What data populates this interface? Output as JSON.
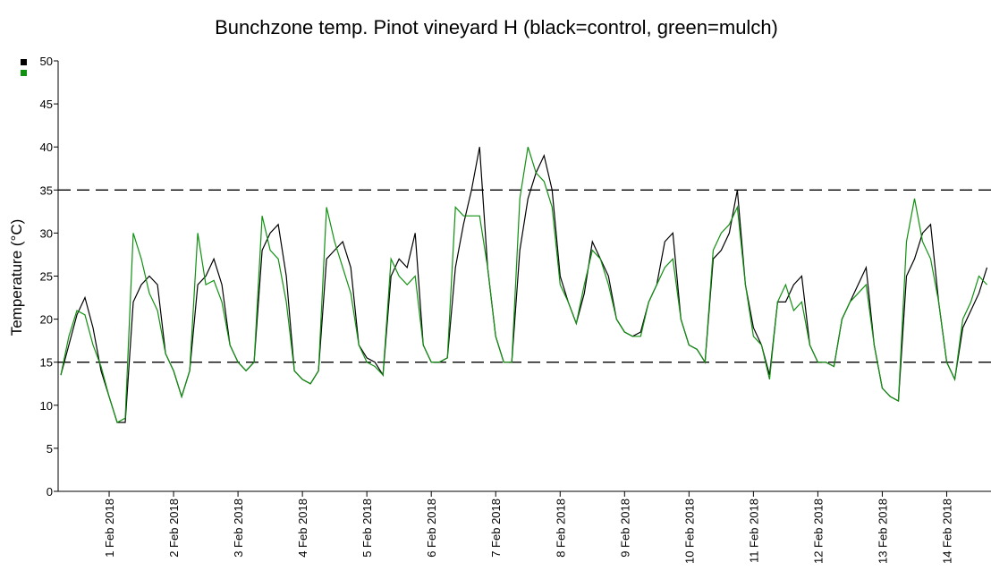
{
  "chart_data": {
    "type": "line",
    "title": "Bunchzone temp. Pinot vineyard H (black=control, green=mulch)",
    "ylabel": "Temperature (°C)",
    "x": [
      "2018-01-31 06:00",
      "2018-01-31 09:00",
      "2018-01-31 12:00",
      "2018-01-31 15:00",
      "2018-01-31 18:00",
      "2018-01-31 21:00",
      "2018-02-01 00:00",
      "2018-02-01 03:00",
      "2018-02-01 06:00",
      "2018-02-01 09:00",
      "2018-02-01 12:00",
      "2018-02-01 15:00",
      "2018-02-01 18:00",
      "2018-02-01 21:00",
      "2018-02-02 00:00",
      "2018-02-02 03:00",
      "2018-02-02 06:00",
      "2018-02-02 09:00",
      "2018-02-02 12:00",
      "2018-02-02 15:00",
      "2018-02-02 18:00",
      "2018-02-02 21:00",
      "2018-02-03 00:00",
      "2018-02-03 03:00",
      "2018-02-03 06:00",
      "2018-02-03 09:00",
      "2018-02-03 12:00",
      "2018-02-03 15:00",
      "2018-02-03 18:00",
      "2018-02-03 21:00",
      "2018-02-04 00:00",
      "2018-02-04 03:00",
      "2018-02-04 06:00",
      "2018-02-04 09:00",
      "2018-02-04 12:00",
      "2018-02-04 15:00",
      "2018-02-04 18:00",
      "2018-02-04 21:00",
      "2018-02-05 00:00",
      "2018-02-05 03:00",
      "2018-02-05 06:00",
      "2018-02-05 09:00",
      "2018-02-05 12:00",
      "2018-02-05 15:00",
      "2018-02-05 18:00",
      "2018-02-05 21:00",
      "2018-02-06 00:00",
      "2018-02-06 03:00",
      "2018-02-06 06:00",
      "2018-02-06 09:00",
      "2018-02-06 12:00",
      "2018-02-06 15:00",
      "2018-02-06 18:00",
      "2018-02-06 21:00",
      "2018-02-07 00:00",
      "2018-02-07 03:00",
      "2018-02-07 06:00",
      "2018-02-07 09:00",
      "2018-02-07 12:00",
      "2018-02-07 15:00",
      "2018-02-07 18:00",
      "2018-02-07 21:00",
      "2018-02-08 00:00",
      "2018-02-08 03:00",
      "2018-02-08 06:00",
      "2018-02-08 09:00",
      "2018-02-08 12:00",
      "2018-02-08 15:00",
      "2018-02-08 18:00",
      "2018-02-08 21:00",
      "2018-02-09 00:00",
      "2018-02-09 03:00",
      "2018-02-09 06:00",
      "2018-02-09 09:00",
      "2018-02-09 12:00",
      "2018-02-09 15:00",
      "2018-02-09 18:00",
      "2018-02-09 21:00",
      "2018-02-10 00:00",
      "2018-02-10 03:00",
      "2018-02-10 06:00",
      "2018-02-10 09:00",
      "2018-02-10 12:00",
      "2018-02-10 15:00",
      "2018-02-10 18:00",
      "2018-02-10 21:00",
      "2018-02-11 00:00",
      "2018-02-11 03:00",
      "2018-02-11 06:00",
      "2018-02-11 09:00",
      "2018-02-11 12:00",
      "2018-02-11 15:00",
      "2018-02-11 18:00",
      "2018-02-11 21:00",
      "2018-02-12 00:00",
      "2018-02-12 03:00",
      "2018-02-12 06:00",
      "2018-02-12 09:00",
      "2018-02-12 12:00",
      "2018-02-12 15:00",
      "2018-02-12 18:00",
      "2018-02-12 21:00",
      "2018-02-13 00:00",
      "2018-02-13 03:00",
      "2018-02-13 06:00",
      "2018-02-13 09:00",
      "2018-02-13 12:00",
      "2018-02-13 15:00",
      "2018-02-13 18:00",
      "2018-02-13 21:00",
      "2018-02-14 00:00",
      "2018-02-14 03:00",
      "2018-02-14 06:00",
      "2018-02-14 09:00",
      "2018-02-14 12:00",
      "2018-02-14 15:00"
    ],
    "series": [
      {
        "color": "#000000",
        "values": [
          13.5,
          17,
          20.5,
          22.5,
          19,
          14,
          11,
          8,
          8,
          22,
          24,
          25,
          24,
          16,
          14,
          11,
          14,
          24,
          25,
          27,
          24,
          17,
          15,
          14,
          15,
          28,
          30,
          31,
          25,
          14,
          13,
          12.5,
          14,
          27,
          28,
          29,
          26,
          17,
          15.5,
          15,
          13.5,
          25,
          27,
          26,
          30,
          17,
          15,
          15,
          15.5,
          26,
          31,
          35,
          40,
          26,
          18,
          15,
          15,
          28,
          34,
          37,
          39,
          35,
          25,
          22,
          19.5,
          23,
          29,
          27,
          25,
          20,
          18.5,
          18,
          18.5,
          22,
          24,
          29,
          30,
          20,
          17,
          16.5,
          15,
          27,
          28,
          30,
          35,
          24,
          19,
          17,
          13.5,
          22,
          22,
          24,
          25,
          17,
          15,
          15,
          14.5,
          20,
          22,
          24,
          26,
          17,
          12,
          11,
          10.5,
          25,
          27,
          30,
          31,
          22,
          15,
          13,
          19,
          21,
          23,
          26
        ]
      },
      {
        "color": "#109010",
        "values": [
          13.5,
          18,
          21,
          20.5,
          17,
          14.5,
          11,
          8,
          8.5,
          30,
          27,
          23,
          21,
          16,
          14,
          11,
          14,
          30,
          24,
          24.5,
          22,
          17,
          15,
          14,
          15,
          32,
          28,
          27,
          22,
          14,
          13,
          12.5,
          14,
          33,
          29,
          26,
          23,
          17,
          15,
          14.5,
          13.5,
          27,
          25,
          24,
          25,
          17,
          15,
          15,
          15.5,
          33,
          32,
          32,
          32,
          26,
          18,
          15,
          15,
          34,
          40,
          37,
          36,
          33,
          24,
          22,
          19.5,
          24,
          28,
          27,
          24,
          20,
          18.5,
          18,
          18,
          22,
          24,
          26,
          27,
          20,
          17,
          16.5,
          15,
          28,
          30,
          31,
          33,
          24,
          18,
          17,
          13,
          22,
          24,
          21,
          22,
          17,
          15,
          15,
          14.5,
          20,
          22,
          23,
          24,
          17,
          12,
          11,
          10.5,
          29,
          34,
          29,
          27,
          22,
          15,
          13,
          20,
          22,
          25,
          24
        ]
      }
    ],
    "xlim": [
      "2018-01-31 05:00",
      "2018-02-14 16:30"
    ],
    "xticks": [
      {
        "value": "2018-02-01 00:00",
        "label": "1 Feb 2018"
      },
      {
        "value": "2018-02-02 00:00",
        "label": "2 Feb 2018"
      },
      {
        "value": "2018-02-03 00:00",
        "label": "3 Feb 2018"
      },
      {
        "value": "2018-02-04 00:00",
        "label": "4 Feb 2018"
      },
      {
        "value": "2018-02-05 00:00",
        "label": "5 Feb 2018"
      },
      {
        "value": "2018-02-06 00:00",
        "label": "6 Feb 2018"
      },
      {
        "value": "2018-02-07 00:00",
        "label": "7 Feb 2018"
      },
      {
        "value": "2018-02-08 00:00",
        "label": "8 Feb 2018"
      },
      {
        "value": "2018-02-09 00:00",
        "label": "9 Feb 2018"
      },
      {
        "value": "2018-02-10 00:00",
        "label": "10 Feb 2018"
      },
      {
        "value": "2018-02-11 00:00",
        "label": "11 Feb 2018"
      },
      {
        "value": "2018-02-12 00:00",
        "label": "12 Feb 2018"
      },
      {
        "value": "2018-02-13 00:00",
        "label": "13 Feb 2018"
      },
      {
        "value": "2018-02-14 00:00",
        "label": "14 Feb 2018"
      }
    ],
    "ylim": [
      0,
      50
    ],
    "yticks": [
      0,
      5,
      10,
      15,
      20,
      25,
      30,
      35,
      40,
      45,
      50
    ],
    "hlines": [
      15,
      35
    ],
    "legend": "upper left"
  }
}
